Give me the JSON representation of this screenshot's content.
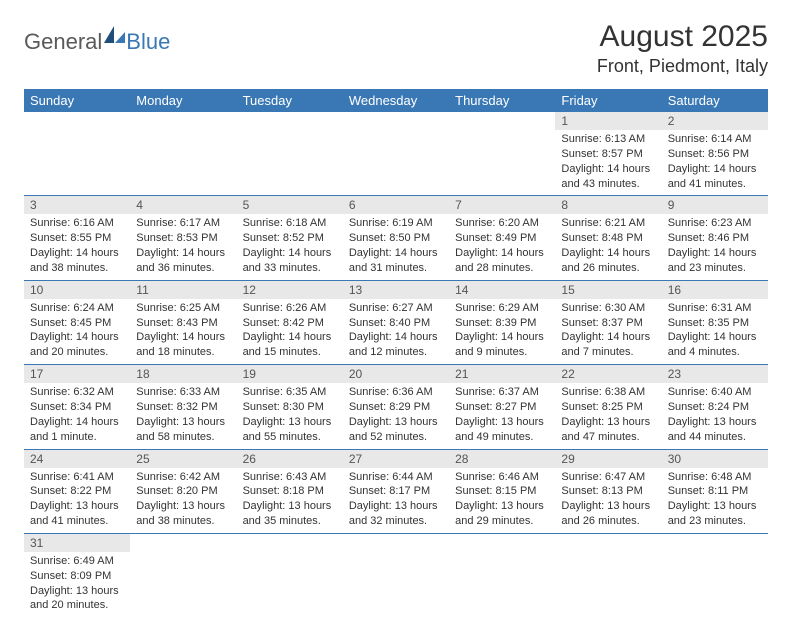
{
  "logo": {
    "text_general": "General",
    "text_blue": "Blue"
  },
  "header": {
    "month_year": "August 2025",
    "location": "Front, Piedmont, Italy"
  },
  "style": {
    "header_bg": "#3a78b5",
    "header_text": "#ffffff",
    "daynum_bg": "#e8e8e8",
    "daynum_text": "#555555",
    "body_text": "#333333",
    "row_border": "#3a78b5",
    "page_bg": "#ffffff",
    "logo_gray": "#5a5a5a",
    "logo_blue": "#3a78b5",
    "title_fontsize": 30,
    "location_fontsize": 18,
    "th_fontsize": 13,
    "daynum_fontsize": 12,
    "body_fontsize": 11
  },
  "calendar": {
    "type": "table",
    "columns": [
      "Sunday",
      "Monday",
      "Tuesday",
      "Wednesday",
      "Thursday",
      "Friday",
      "Saturday"
    ],
    "weeks": [
      [
        null,
        null,
        null,
        null,
        null,
        {
          "n": "1",
          "sunrise": "Sunrise: 6:13 AM",
          "sunset": "Sunset: 8:57 PM",
          "daylight": "Daylight: 14 hours and 43 minutes."
        },
        {
          "n": "2",
          "sunrise": "Sunrise: 6:14 AM",
          "sunset": "Sunset: 8:56 PM",
          "daylight": "Daylight: 14 hours and 41 minutes."
        }
      ],
      [
        {
          "n": "3",
          "sunrise": "Sunrise: 6:16 AM",
          "sunset": "Sunset: 8:55 PM",
          "daylight": "Daylight: 14 hours and 38 minutes."
        },
        {
          "n": "4",
          "sunrise": "Sunrise: 6:17 AM",
          "sunset": "Sunset: 8:53 PM",
          "daylight": "Daylight: 14 hours and 36 minutes."
        },
        {
          "n": "5",
          "sunrise": "Sunrise: 6:18 AM",
          "sunset": "Sunset: 8:52 PM",
          "daylight": "Daylight: 14 hours and 33 minutes."
        },
        {
          "n": "6",
          "sunrise": "Sunrise: 6:19 AM",
          "sunset": "Sunset: 8:50 PM",
          "daylight": "Daylight: 14 hours and 31 minutes."
        },
        {
          "n": "7",
          "sunrise": "Sunrise: 6:20 AM",
          "sunset": "Sunset: 8:49 PM",
          "daylight": "Daylight: 14 hours and 28 minutes."
        },
        {
          "n": "8",
          "sunrise": "Sunrise: 6:21 AM",
          "sunset": "Sunset: 8:48 PM",
          "daylight": "Daylight: 14 hours and 26 minutes."
        },
        {
          "n": "9",
          "sunrise": "Sunrise: 6:23 AM",
          "sunset": "Sunset: 8:46 PM",
          "daylight": "Daylight: 14 hours and 23 minutes."
        }
      ],
      [
        {
          "n": "10",
          "sunrise": "Sunrise: 6:24 AM",
          "sunset": "Sunset: 8:45 PM",
          "daylight": "Daylight: 14 hours and 20 minutes."
        },
        {
          "n": "11",
          "sunrise": "Sunrise: 6:25 AM",
          "sunset": "Sunset: 8:43 PM",
          "daylight": "Daylight: 14 hours and 18 minutes."
        },
        {
          "n": "12",
          "sunrise": "Sunrise: 6:26 AM",
          "sunset": "Sunset: 8:42 PM",
          "daylight": "Daylight: 14 hours and 15 minutes."
        },
        {
          "n": "13",
          "sunrise": "Sunrise: 6:27 AM",
          "sunset": "Sunset: 8:40 PM",
          "daylight": "Daylight: 14 hours and 12 minutes."
        },
        {
          "n": "14",
          "sunrise": "Sunrise: 6:29 AM",
          "sunset": "Sunset: 8:39 PM",
          "daylight": "Daylight: 14 hours and 9 minutes."
        },
        {
          "n": "15",
          "sunrise": "Sunrise: 6:30 AM",
          "sunset": "Sunset: 8:37 PM",
          "daylight": "Daylight: 14 hours and 7 minutes."
        },
        {
          "n": "16",
          "sunrise": "Sunrise: 6:31 AM",
          "sunset": "Sunset: 8:35 PM",
          "daylight": "Daylight: 14 hours and 4 minutes."
        }
      ],
      [
        {
          "n": "17",
          "sunrise": "Sunrise: 6:32 AM",
          "sunset": "Sunset: 8:34 PM",
          "daylight": "Daylight: 14 hours and 1 minute."
        },
        {
          "n": "18",
          "sunrise": "Sunrise: 6:33 AM",
          "sunset": "Sunset: 8:32 PM",
          "daylight": "Daylight: 13 hours and 58 minutes."
        },
        {
          "n": "19",
          "sunrise": "Sunrise: 6:35 AM",
          "sunset": "Sunset: 8:30 PM",
          "daylight": "Daylight: 13 hours and 55 minutes."
        },
        {
          "n": "20",
          "sunrise": "Sunrise: 6:36 AM",
          "sunset": "Sunset: 8:29 PM",
          "daylight": "Daylight: 13 hours and 52 minutes."
        },
        {
          "n": "21",
          "sunrise": "Sunrise: 6:37 AM",
          "sunset": "Sunset: 8:27 PM",
          "daylight": "Daylight: 13 hours and 49 minutes."
        },
        {
          "n": "22",
          "sunrise": "Sunrise: 6:38 AM",
          "sunset": "Sunset: 8:25 PM",
          "daylight": "Daylight: 13 hours and 47 minutes."
        },
        {
          "n": "23",
          "sunrise": "Sunrise: 6:40 AM",
          "sunset": "Sunset: 8:24 PM",
          "daylight": "Daylight: 13 hours and 44 minutes."
        }
      ],
      [
        {
          "n": "24",
          "sunrise": "Sunrise: 6:41 AM",
          "sunset": "Sunset: 8:22 PM",
          "daylight": "Daylight: 13 hours and 41 minutes."
        },
        {
          "n": "25",
          "sunrise": "Sunrise: 6:42 AM",
          "sunset": "Sunset: 8:20 PM",
          "daylight": "Daylight: 13 hours and 38 minutes."
        },
        {
          "n": "26",
          "sunrise": "Sunrise: 6:43 AM",
          "sunset": "Sunset: 8:18 PM",
          "daylight": "Daylight: 13 hours and 35 minutes."
        },
        {
          "n": "27",
          "sunrise": "Sunrise: 6:44 AM",
          "sunset": "Sunset: 8:17 PM",
          "daylight": "Daylight: 13 hours and 32 minutes."
        },
        {
          "n": "28",
          "sunrise": "Sunrise: 6:46 AM",
          "sunset": "Sunset: 8:15 PM",
          "daylight": "Daylight: 13 hours and 29 minutes."
        },
        {
          "n": "29",
          "sunrise": "Sunrise: 6:47 AM",
          "sunset": "Sunset: 8:13 PM",
          "daylight": "Daylight: 13 hours and 26 minutes."
        },
        {
          "n": "30",
          "sunrise": "Sunrise: 6:48 AM",
          "sunset": "Sunset: 8:11 PM",
          "daylight": "Daylight: 13 hours and 23 minutes."
        }
      ],
      [
        {
          "n": "31",
          "sunrise": "Sunrise: 6:49 AM",
          "sunset": "Sunset: 8:09 PM",
          "daylight": "Daylight: 13 hours and 20 minutes."
        },
        null,
        null,
        null,
        null,
        null,
        null
      ]
    ]
  }
}
